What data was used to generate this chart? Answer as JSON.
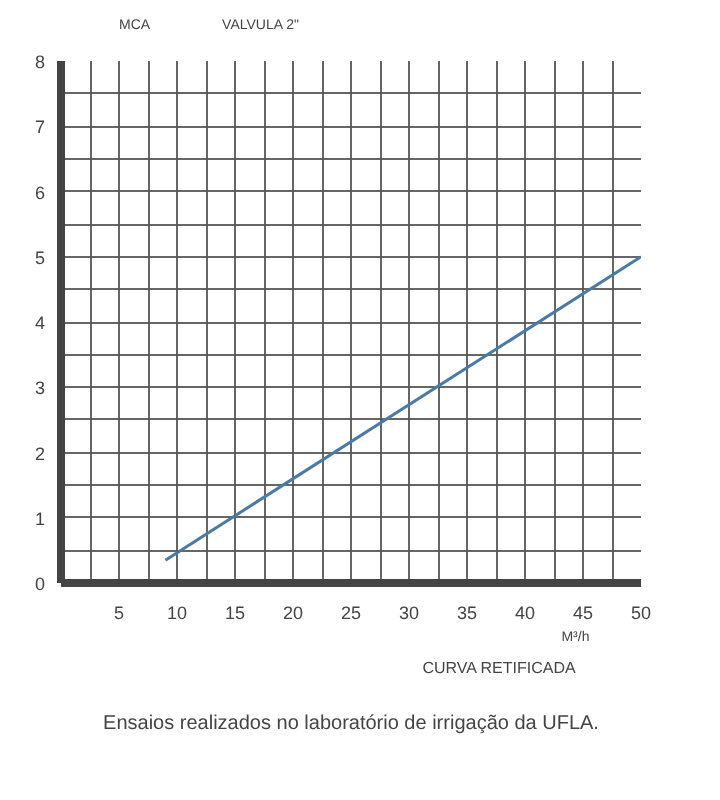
{
  "chart_data": {
    "type": "line",
    "title": "VALVULA 2\"",
    "ylabel": "MCA",
    "xlabel": "M³/h",
    "x": [
      9,
      50
    ],
    "series": [
      {
        "color": "#4a7ba6",
        "values": [
          0.35,
          5.0
        ]
      }
    ],
    "xlim": [
      0,
      50
    ],
    "ylim": [
      0,
      8
    ],
    "xticks": [
      {
        "value": 2.5,
        "label": null
      },
      5,
      {
        "value": 7.5,
        "label": null
      },
      10,
      {
        "value": 12.5,
        "label": null
      },
      15,
      {
        "value": 17.5,
        "label": null
      },
      20,
      {
        "value": 22.5,
        "label": null
      },
      25,
      {
        "value": 27.5,
        "label": null
      },
      30,
      {
        "value": 32.5,
        "label": null
      },
      35,
      {
        "value": 37.5,
        "label": null
      },
      40,
      {
        "value": 42.5,
        "label": null
      },
      45,
      {
        "value": 47.5,
        "label": null
      },
      50
    ],
    "yticks": [
      0,
      {
        "value": 0.5,
        "label": null
      },
      1,
      {
        "value": 1.5,
        "label": null
      },
      2,
      {
        "value": 2.5,
        "label": null
      },
      3,
      {
        "value": 3.5,
        "label": null
      },
      4,
      {
        "value": 4.5,
        "label": null
      },
      5,
      {
        "value": 5.5,
        "label": null
      },
      6,
      {
        "value": 6.5,
        "label": null
      },
      7,
      {
        "value": 7.5,
        "label": null
      },
      8
    ],
    "grid": true,
    "marker": "none",
    "line_style": "solid",
    "annotations": [
      "CURVA RETIFICADA",
      "Ensaios realizados no laboratório de irrigação da UFLA."
    ]
  }
}
